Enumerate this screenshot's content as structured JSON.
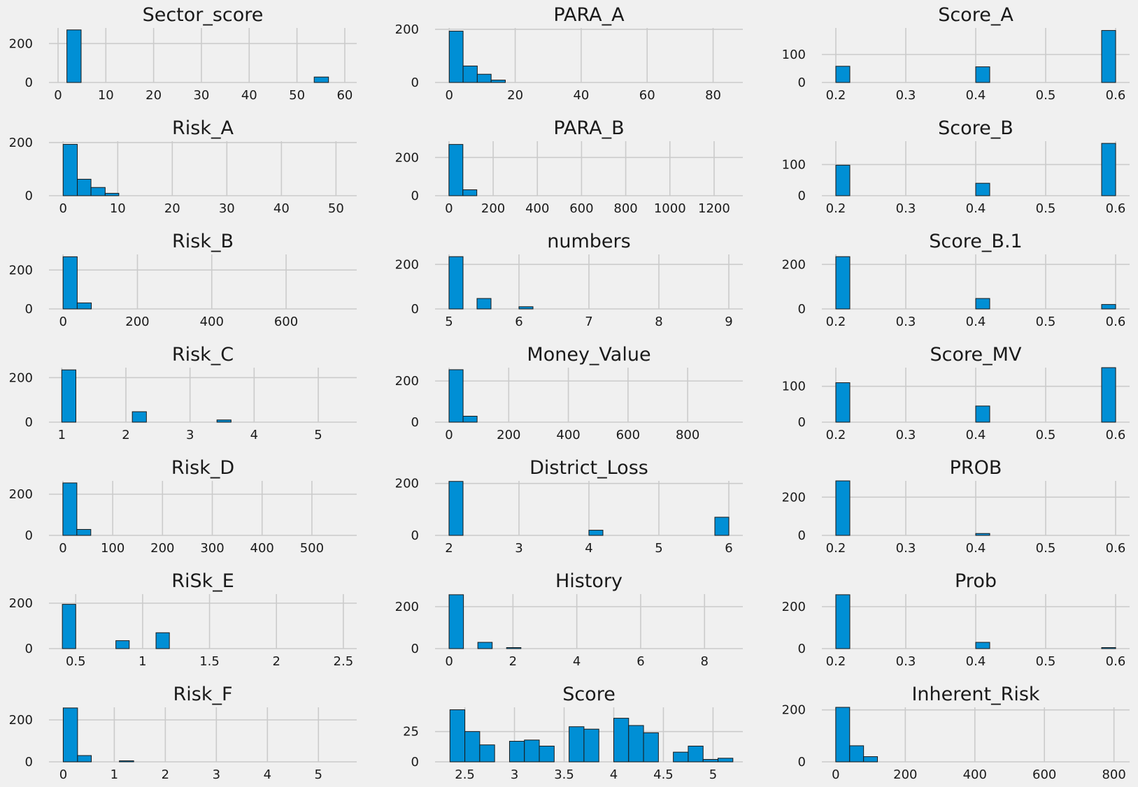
{
  "figure": {
    "background": "#f0f0f0",
    "bar_color": "#008fd5",
    "bar_edge_color": "#1a1a1a",
    "grid_color": "#cbcbcb",
    "style": "fivethirtyeight"
  },
  "chart_data": [
    {
      "type": "bar",
      "title": "Sector_score",
      "xlim": [
        -1.9,
        62.5
      ],
      "ylim": [
        0,
        280
      ],
      "xticks": [
        0,
        10,
        20,
        30,
        40,
        50,
        60
      ],
      "yticks": [
        0,
        200
      ],
      "bins": [
        [
          1.85,
          4.83,
          270
        ],
        [
          53.6,
          56.6,
          28
        ]
      ]
    },
    {
      "type": "bar",
      "title": "PARA_A",
      "xlim": [
        -4.3,
        89
      ],
      "ylim": [
        0,
        205
      ],
      "xticks": [
        0,
        20,
        40,
        60,
        80
      ],
      "yticks": [
        0,
        200
      ],
      "bins": [
        [
          0,
          4.2,
          193
        ],
        [
          4.2,
          8.5,
          62
        ],
        [
          8.5,
          12.7,
          31
        ],
        [
          12.7,
          17,
          9
        ]
      ]
    },
    {
      "type": "bar",
      "title": "Score_A",
      "xlim": [
        0.18,
        0.62
      ],
      "ylim": [
        0,
        195
      ],
      "xticks": [
        0.2,
        0.3,
        0.4,
        0.5,
        0.6
      ],
      "yticks": [
        0,
        100
      ],
      "bins": [
        [
          0.2,
          0.22,
          58
        ],
        [
          0.4,
          0.42,
          56
        ],
        [
          0.58,
          0.6,
          186
        ]
      ]
    },
    {
      "type": "bar",
      "title": "Risk_A",
      "xlim": [
        -2.6,
        53.8
      ],
      "ylim": [
        0,
        205
      ],
      "xticks": [
        0,
        10,
        20,
        30,
        40,
        50
      ],
      "yticks": [
        0,
        200
      ],
      "bins": [
        [
          0,
          2.6,
          193
        ],
        [
          2.6,
          5.1,
          62
        ],
        [
          5.1,
          7.7,
          31
        ],
        [
          7.7,
          10.2,
          9
        ]
      ]
    },
    {
      "type": "bar",
      "title": "PARA_B",
      "xlim": [
        -63,
        1330
      ],
      "ylim": [
        0,
        285
      ],
      "xticks": [
        0,
        200,
        400,
        600,
        800,
        1000,
        1200
      ],
      "yticks": [
        0,
        200
      ],
      "bins": [
        [
          0,
          63,
          268
        ],
        [
          63,
          126,
          31
        ]
      ]
    },
    {
      "type": "bar",
      "title": "Score_B",
      "xlim": [
        0.18,
        0.62
      ],
      "ylim": [
        0,
        175
      ],
      "xticks": [
        0.2,
        0.3,
        0.4,
        0.5,
        0.6
      ],
      "yticks": [
        0,
        100
      ],
      "bins": [
        [
          0.2,
          0.22,
          98
        ],
        [
          0.4,
          0.42,
          40
        ],
        [
          0.58,
          0.6,
          168
        ]
      ]
    },
    {
      "type": "bar",
      "title": "Risk_B",
      "xlim": [
        -38,
        790
      ],
      "ylim": [
        0,
        280
      ],
      "xticks": [
        0,
        200,
        400,
        600
      ],
      "yticks": [
        0,
        200
      ],
      "bins": [
        [
          0,
          38,
          268
        ],
        [
          38,
          76,
          31
        ]
      ]
    },
    {
      "type": "bar",
      "title": "numbers",
      "xlim": [
        4.8,
        9.2
      ],
      "ylim": [
        0,
        245
      ],
      "xticks": [
        5,
        6,
        7,
        8,
        9
      ],
      "yticks": [
        0,
        200
      ],
      "bins": [
        [
          5,
          5.2,
          235
        ],
        [
          5.4,
          5.6,
          47
        ],
        [
          6,
          6.2,
          10
        ]
      ]
    },
    {
      "type": "bar",
      "title": "Score_B.1",
      "xlim": [
        0.18,
        0.62
      ],
      "ylim": [
        0,
        245
      ],
      "xticks": [
        0.2,
        0.3,
        0.4,
        0.5,
        0.6
      ],
      "yticks": [
        0,
        200
      ],
      "bins": [
        [
          0.2,
          0.22,
          235
        ],
        [
          0.4,
          0.42,
          47
        ],
        [
          0.58,
          0.6,
          20
        ]
      ]
    },
    {
      "type": "bar",
      "title": "Risk_C",
      "xlim": [
        0.8,
        5.6
      ],
      "ylim": [
        0,
        245
      ],
      "xticks": [
        1,
        2,
        3,
        4,
        5
      ],
      "yticks": [
        0,
        200
      ],
      "bins": [
        [
          1,
          1.22,
          235
        ],
        [
          2.1,
          2.32,
          47
        ],
        [
          3.42,
          3.64,
          10
        ]
      ]
    },
    {
      "type": "bar",
      "title": "Money_Value",
      "xlim": [
        -47,
        985
      ],
      "ylim": [
        0,
        265
      ],
      "xticks": [
        0,
        200,
        400,
        600,
        800
      ],
      "yticks": [
        0,
        200
      ],
      "bins": [
        [
          0,
          47,
          255
        ],
        [
          47,
          94,
          29
        ]
      ]
    },
    {
      "type": "bar",
      "title": "Score_MV",
      "xlim": [
        0.18,
        0.62
      ],
      "ylim": [
        0,
        152
      ],
      "xticks": [
        0.2,
        0.3,
        0.4,
        0.5,
        0.6
      ],
      "yticks": [
        0,
        100
      ],
      "bins": [
        [
          0.2,
          0.22,
          110
        ],
        [
          0.4,
          0.42,
          45
        ],
        [
          0.58,
          0.6,
          152
        ]
      ]
    },
    {
      "type": "bar",
      "title": "Risk_D",
      "xlim": [
        -28,
        590
      ],
      "ylim": [
        0,
        265
      ],
      "xticks": [
        0,
        100,
        200,
        300,
        400,
        500
      ],
      "yticks": [
        0,
        200
      ],
      "bins": [
        [
          0,
          28,
          255
        ],
        [
          28,
          56,
          29
        ]
      ]
    },
    {
      "type": "bar",
      "title": "District_Loss",
      "xlim": [
        1.8,
        6.2
      ],
      "ylim": [
        0,
        210
      ],
      "xticks": [
        2,
        3,
        4,
        5,
        6
      ],
      "yticks": [
        0,
        200
      ],
      "bins": [
        [
          2,
          2.2,
          208
        ],
        [
          4,
          4.2,
          20
        ],
        [
          5.8,
          6,
          70
        ]
      ]
    },
    {
      "type": "bar",
      "title": "PROB",
      "xlim": [
        0.18,
        0.62
      ],
      "ylim": [
        0,
        285
      ],
      "xticks": [
        0.2,
        0.3,
        0.4,
        0.5,
        0.6
      ],
      "yticks": [
        0,
        200
      ],
      "bins": [
        [
          0.2,
          0.22,
          285
        ],
        [
          0.4,
          0.42,
          10
        ]
      ]
    },
    {
      "type": "bar",
      "title": "RiSk_E",
      "xlim": [
        0.3,
        2.6
      ],
      "ylim": [
        0,
        240
      ],
      "xticks": [
        0.5,
        1.0,
        1.5,
        2.0,
        2.5
      ],
      "yticks": [
        0,
        200
      ],
      "bins": [
        [
          0.4,
          0.5,
          195
        ],
        [
          0.8,
          0.9,
          35
        ],
        [
          1.1,
          1.2,
          70
        ]
      ]
    },
    {
      "type": "bar",
      "title": "History",
      "xlim": [
        -0.44,
        9.2
      ],
      "ylim": [
        0,
        260
      ],
      "xticks": [
        0,
        2,
        4,
        6,
        8
      ],
      "yticks": [
        0,
        200
      ],
      "bins": [
        [
          0,
          0.45,
          257
        ],
        [
          0.9,
          1.35,
          30
        ],
        [
          1.8,
          2.25,
          5
        ]
      ]
    },
    {
      "type": "bar",
      "title": "Prob",
      "xlim": [
        0.18,
        0.62
      ],
      "ylim": [
        0,
        260
      ],
      "xticks": [
        0.2,
        0.3,
        0.4,
        0.5,
        0.6
      ],
      "yticks": [
        0,
        200
      ],
      "bins": [
        [
          0.2,
          0.22,
          257
        ],
        [
          0.4,
          0.42,
          30
        ],
        [
          0.58,
          0.6,
          5
        ]
      ]
    },
    {
      "type": "bar",
      "title": "Risk_F",
      "xlim": [
        -0.28,
        5.75
      ],
      "ylim": [
        0,
        260
      ],
      "xticks": [
        0,
        1,
        2,
        3,
        4,
        5
      ],
      "yticks": [
        0,
        200
      ],
      "bins": [
        [
          0,
          0.28,
          257
        ],
        [
          0.28,
          0.55,
          30
        ],
        [
          1.1,
          1.38,
          5
        ]
      ]
    },
    {
      "type": "bar",
      "title": "Score",
      "xlim": [
        2.2,
        5.3
      ],
      "ylim": [
        0,
        45
      ],
      "xticks": [
        2.5,
        3.0,
        3.5,
        4.0,
        4.5,
        5.0
      ],
      "yticks": [
        0,
        25
      ],
      "bins": [
        [
          2.35,
          2.5,
          43
        ],
        [
          2.5,
          2.65,
          25
        ],
        [
          2.65,
          2.8,
          14
        ],
        [
          2.95,
          3.1,
          17
        ],
        [
          3.1,
          3.25,
          18
        ],
        [
          3.25,
          3.4,
          13
        ],
        [
          3.55,
          3.7,
          29
        ],
        [
          3.7,
          3.85,
          27
        ],
        [
          4.0,
          4.15,
          36
        ],
        [
          4.15,
          4.3,
          30
        ],
        [
          4.3,
          4.45,
          24
        ],
        [
          4.6,
          4.75,
          8
        ],
        [
          4.75,
          4.9,
          13
        ],
        [
          4.9,
          5.05,
          2
        ],
        [
          5.05,
          5.2,
          3
        ]
      ]
    },
    {
      "type": "bar",
      "title": "Inherent_Risk",
      "xlim": [
        -40,
        845
      ],
      "ylim": [
        0,
        210
      ],
      "xticks": [
        0,
        200,
        400,
        600,
        800
      ],
      "yticks": [
        0,
        200
      ],
      "bins": [
        [
          0,
          40,
          210
        ],
        [
          40,
          80,
          62
        ],
        [
          80,
          120,
          20
        ]
      ]
    }
  ]
}
